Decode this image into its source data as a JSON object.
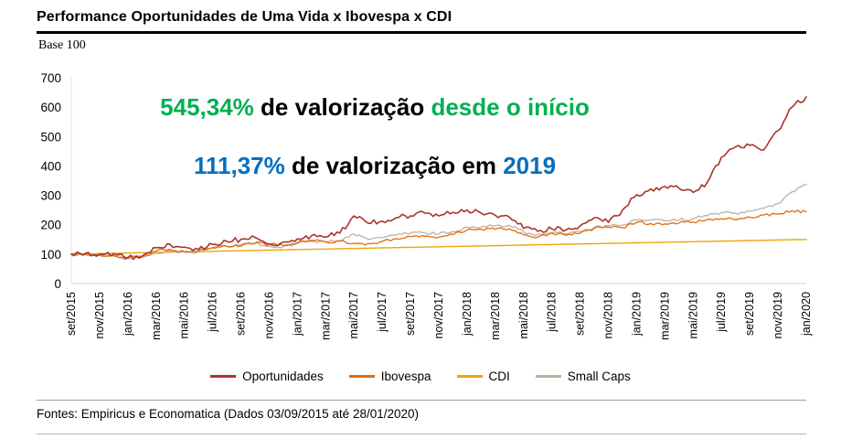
{
  "title": "Performance Oportunidades de Uma Vida x Ibovespa x CDI",
  "annotations": {
    "line1": {
      "pct": "545,34%",
      "mid": " de valorização ",
      "suffix": "desde o início",
      "highlight_color": "#00B050"
    },
    "line2": {
      "pct": "111,37%",
      "mid": " de valorização em ",
      "suffix": "2019",
      "highlight_color": "#0070C0"
    }
  },
  "footer": {
    "source": "Fontes: Empiricus e Economatica (Dados 03/09/2015 até 28/01/2020)"
  },
  "chart_data": {
    "type": "line",
    "title": "Performance Oportunidades de Uma Vida x Ibovespa x CDI",
    "ylabel": "Base 100",
    "xlabel": "",
    "ylim": [
      0,
      700
    ],
    "y_ticks": [
      0,
      100,
      200,
      300,
      400,
      500,
      600,
      700
    ],
    "grid": false,
    "legend_position": "bottom",
    "months_per_tick": 2,
    "x_tick_labels": [
      "set/2015",
      "nov/2015",
      "jan/2016",
      "mar/2016",
      "mai/2016",
      "jul/2016",
      "set/2016",
      "nov/2016",
      "jan/2017",
      "mar/2017",
      "mai/2017",
      "jul/2017",
      "set/2017",
      "nov/2017",
      "jan/2018",
      "mar/2018",
      "mai/2018",
      "jul/2018",
      "set/2018",
      "nov/2018",
      "jan/2019",
      "mar/2019",
      "mai/2019",
      "jul/2019",
      "set/2019",
      "nov/2019",
      "jan/2020"
    ],
    "series": [
      {
        "name": "Oportunidades",
        "color": "#A93529",
        "width": 1.6,
        "jitter": 9,
        "values": [
          100,
          103,
          100,
          102,
          88,
          93,
          122,
          133,
          124,
          116,
          133,
          143,
          150,
          157,
          134,
          141,
          152,
          163,
          158,
          172,
          230,
          205,
          212,
          224,
          230,
          240,
          230,
          242,
          250,
          240,
          232,
          226,
          188,
          178,
          186,
          182,
          196,
          224,
          208,
          250,
          302,
          322,
          330,
          324,
          310,
          345,
          430,
          465,
          470,
          455,
          520,
          600,
          635
        ]
      },
      {
        "name": "Ibovespa",
        "color": "#E36C0A",
        "width": 1.3,
        "jitter": 5,
        "values": [
          100,
          99,
          96,
          95,
          87,
          91,
          110,
          116,
          109,
          111,
          122,
          126,
          127,
          138,
          132,
          130,
          140,
          147,
          142,
          144,
          137,
          136,
          143,
          152,
          160,
          161,
          158,
          166,
          182,
          185,
          184,
          186,
          166,
          158,
          172,
          164,
          171,
          188,
          192,
          190,
          208,
          204,
          203,
          206,
          209,
          218,
          221,
          217,
          226,
          233,
          236,
          248,
          244
        ]
      },
      {
        "name": "CDI",
        "color": "#F0A30A",
        "width": 1.4,
        "jitter": 0,
        "values": [
          100,
          101,
          101.9,
          102.9,
          103.8,
          104.8,
          105.8,
          106.7,
          107.7,
          108.7,
          109.6,
          110.6,
          111.5,
          112.5,
          113.5,
          114.4,
          115.4,
          116.3,
          117.3,
          118.3,
          119.2,
          120.2,
          121.2,
          122.1,
          123.1,
          124,
          125,
          126,
          126.9,
          127.9,
          128.8,
          129.8,
          130.8,
          131.7,
          132.7,
          133.7,
          134.6,
          135.6,
          136.5,
          137.5,
          138.5,
          139.4,
          140.4,
          141.3,
          142.3,
          143.3,
          144.2,
          145.2,
          146.2,
          147.1,
          148.1,
          149,
          150
        ]
      },
      {
        "name": "Small Caps",
        "color": "#BDB0A0",
        "width": 1.3,
        "jitter": 5,
        "values": [
          100,
          98,
          96,
          94,
          85,
          89,
          104,
          112,
          106,
          108,
          120,
          128,
          131,
          136,
          126,
          125,
          136,
          143,
          141,
          146,
          168,
          150,
          156,
          166,
          171,
          173,
          169,
          176,
          191,
          193,
          196,
          198,
          176,
          166,
          173,
          169,
          176,
          191,
          196,
          199,
          216,
          216,
          213,
          216,
          221,
          231,
          241,
          239,
          246,
          256,
          272,
          312,
          338
        ]
      }
    ],
    "draw_order": [
      2,
      3,
      1,
      0
    ]
  }
}
